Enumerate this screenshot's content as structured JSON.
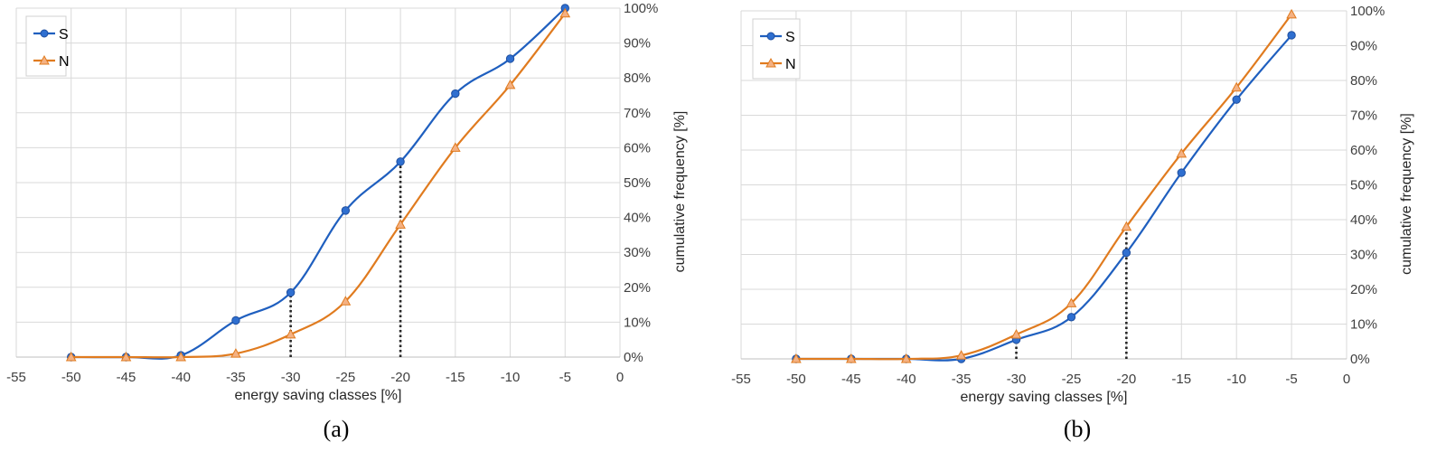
{
  "chart_data": [
    {
      "type": "line",
      "panel_label": "(a)",
      "xlabel": "energy saving classes  [%]",
      "ylabel": "cumulative frequency  [%]",
      "xlim": [
        -55,
        0
      ],
      "ylim": [
        0,
        100
      ],
      "x_ticks": [
        "-55",
        "-50",
        "-45",
        "-40",
        "-35",
        "-30",
        "-25",
        "-20",
        "-15",
        "-10",
        "-5",
        "0"
      ],
      "y_ticks": [
        "0%",
        "10%",
        "20%",
        "30%",
        "40%",
        "50%",
        "60%",
        "70%",
        "80%",
        "90%",
        "100%"
      ],
      "y_axis_side": "right",
      "grid": true,
      "legend": "top-left",
      "x": [
        -50,
        -45,
        -40,
        -35,
        -30,
        -25,
        -20,
        -15,
        -10,
        -5
      ],
      "series": [
        {
          "name": "S",
          "color": "#1f5fbf",
          "marker": "circle",
          "values": [
            0,
            0,
            0.5,
            10.5,
            18.5,
            42,
            56,
            75.5,
            85.5,
            100
          ]
        },
        {
          "name": "N",
          "color": "#e07b1f",
          "marker": "triangle",
          "values": [
            0,
            0,
            0,
            1,
            6.5,
            16,
            38,
            60,
            78,
            98.5
          ]
        }
      ],
      "reference_lines": [
        {
          "x": -30,
          "to": 18.5
        },
        {
          "x": -20,
          "to": 56
        }
      ]
    },
    {
      "type": "line",
      "panel_label": "(b)",
      "xlabel": "energy saving classes  [%]",
      "ylabel": "cumulative frequency  [%]",
      "xlim": [
        -55,
        0
      ],
      "ylim": [
        0,
        100
      ],
      "x_ticks": [
        "-55",
        "-50",
        "-45",
        "-40",
        "-35",
        "-30",
        "-25",
        "-20",
        "-15",
        "-10",
        "-5",
        "0"
      ],
      "y_ticks": [
        "0%",
        "10%",
        "20%",
        "30%",
        "40%",
        "50%",
        "60%",
        "70%",
        "80%",
        "90%",
        "100%"
      ],
      "y_axis_side": "right",
      "grid": true,
      "legend": "top-left",
      "x": [
        -50,
        -45,
        -40,
        -35,
        -30,
        -25,
        -20,
        -15,
        -10,
        -5
      ],
      "series": [
        {
          "name": "S",
          "color": "#1f5fbf",
          "marker": "circle",
          "values": [
            0,
            0,
            0,
            0,
            5.5,
            12,
            30.5,
            53.5,
            74.5,
            93
          ]
        },
        {
          "name": "N",
          "color": "#e07b1f",
          "marker": "triangle",
          "values": [
            0,
            0,
            0,
            1,
            7,
            16,
            38,
            59,
            78,
            99
          ]
        }
      ],
      "reference_lines": [
        {
          "x": -30,
          "to": 7
        },
        {
          "x": -20,
          "to": 38
        }
      ]
    }
  ]
}
